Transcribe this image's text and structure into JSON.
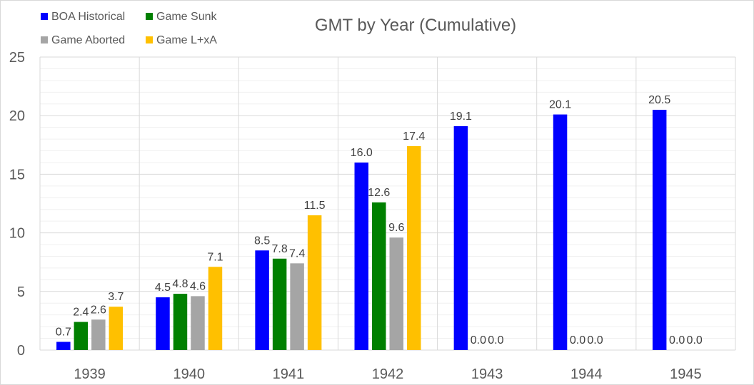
{
  "chart_data": {
    "type": "bar",
    "title": "GMT by Year (Cumulative)",
    "xlabel": "",
    "ylabel": "",
    "ylim": [
      0,
      25
    ],
    "yticks": [
      0,
      5,
      10,
      15,
      20,
      25
    ],
    "grid": true,
    "legend_position": "top-left",
    "categories": [
      "1939",
      "1940",
      "1941",
      "1942",
      "1943",
      "1944",
      "1945"
    ],
    "series": [
      {
        "name": "BOA Historical",
        "color": "#0000FF",
        "values": [
          0.7,
          4.5,
          8.5,
          16.0,
          19.1,
          20.1,
          20.5
        ],
        "labels": [
          "0.7",
          "4.5",
          "8.5",
          "16.0",
          "19.1",
          "20.1",
          "20.5"
        ]
      },
      {
        "name": "Game Sunk",
        "color": "#008000",
        "values": [
          2.4,
          4.8,
          7.8,
          12.6,
          0.0,
          0.0,
          0.0
        ],
        "labels": [
          "2.4",
          "4.8",
          "7.8",
          "12.6",
          "0.0",
          "0.0",
          "0.0"
        ]
      },
      {
        "name": "Game Aborted",
        "color": "#A5A5A5",
        "values": [
          2.6,
          4.6,
          7.4,
          9.6,
          0.0,
          0.0,
          0.0
        ],
        "labels": [
          "2.6",
          "4.6",
          "7.4",
          "9.6",
          "0.0",
          "0.0",
          "0.0"
        ]
      },
      {
        "name": "Game L+xA",
        "color": "#FFC000",
        "values": [
          3.7,
          7.1,
          11.5,
          17.4,
          null,
          null,
          null
        ],
        "labels": [
          "3.7",
          "7.1",
          "11.5",
          "17.4",
          "",
          "",
          ""
        ]
      }
    ]
  }
}
